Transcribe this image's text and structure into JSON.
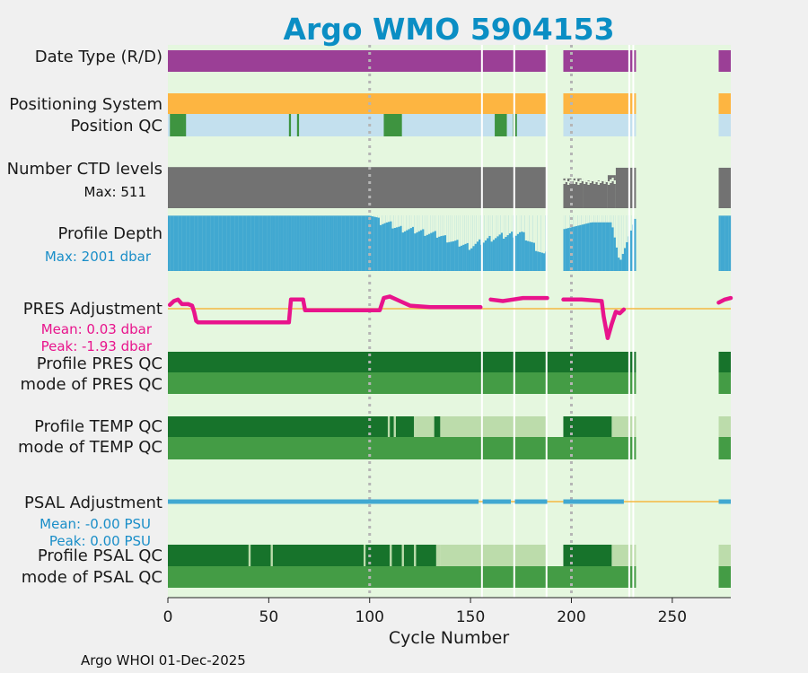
{
  "chart_data": {
    "type": "bar",
    "title": "Argo WMO 5904153",
    "xlabel": "Cycle Number",
    "xlim": [
      0,
      279
    ],
    "xticks": [
      0,
      50,
      100,
      150,
      200,
      250
    ],
    "footer": "Argo WHOI 01-Dec-2025",
    "gaps": [
      [
        188,
        196
      ],
      [
        232,
        273
      ]
    ],
    "missing_cycles": [
      155,
      171,
      187,
      228,
      230
    ],
    "dotted_lines_at": [
      100,
      200
    ],
    "row_labels": {
      "date_type": "Date Type (R/D)",
      "positioning": "Positioning System",
      "position_qc": "Position QC",
      "ctd_levels": "Number CTD levels",
      "profile_depth": "Profile Depth",
      "pres_adj": "PRES Adjustment",
      "profile_pres_qc": "Profile PRES QC",
      "mode_pres_qc": "mode of PRES QC",
      "profile_temp_qc": "Profile TEMP QC",
      "mode_temp_qc": "mode of TEMP QC",
      "psal_adj": "PSAL Adjustment",
      "profile_psal_qc": "Profile PSAL QC",
      "mode_psal_qc": "mode of PSAL QC"
    },
    "annotations": {
      "ctd_max": "Max: 511",
      "depth_max": "Max: 2001 dbar",
      "pres_mean": "Mean: 0.03 dbar",
      "pres_peak": "Peak: -1.93 dbar",
      "psal_mean": "Mean: -0.00 PSU",
      "psal_peak": "Peak: 0.00 PSU"
    },
    "colors": {
      "background": "#e5f7df",
      "date_type": "#9b3f96",
      "positioning": "#fdb541",
      "position_qc_good": "#c3e0ee",
      "position_qc_flag": "#3e9440",
      "ctd": "#727272",
      "depth": "#41a8d1",
      "pres_adj": "#e8148c",
      "zero_line": "#f5b942",
      "qc_dark": "#17732b",
      "qc_mid": "#449c45",
      "qc_light": "#bcdcab",
      "psal_adj": "#41a8d1",
      "title": "#0b8ec4",
      "annot_pink": "#e8148c",
      "annot_blue": "#1a8ec8"
    },
    "position_qc_flag_cycles": [
      [
        1,
        7
      ],
      [
        8,
        8
      ],
      [
        60,
        60
      ],
      [
        64,
        64
      ],
      [
        107,
        115
      ],
      [
        162,
        167
      ],
      [
        171,
        172
      ]
    ],
    "ctd_levels": [
      {
        "x0": 0,
        "x1": 188,
        "top": 498,
        "bottom": 0,
        "mean": 490
      },
      {
        "x0": 196,
        "x1": 206,
        "top": 360,
        "bottom": 0,
        "mean": 350
      },
      {
        "x0": 206,
        "x1": 218,
        "top": 335,
        "bottom": 0,
        "mean": 335
      },
      {
        "x0": 218,
        "x1": 222,
        "top": 400,
        "bottom": 0,
        "mean": 400
      },
      {
        "x0": 222,
        "x1": 232,
        "top": 490,
        "bottom": 0,
        "mean": 490
      },
      {
        "x0": 273,
        "x1": 279,
        "top": 490,
        "bottom": 0,
        "mean": 490
      }
    ],
    "profile_depth_points": [
      [
        0,
        1990
      ],
      [
        100,
        1990
      ],
      [
        108,
        1860
      ],
      [
        115,
        1650
      ],
      [
        125,
        1550
      ],
      [
        135,
        1400
      ],
      [
        142,
        1150
      ],
      [
        150,
        1000
      ],
      [
        160,
        1300
      ],
      [
        175,
        1500
      ],
      [
        187,
        650
      ],
      [
        196,
        1500
      ],
      [
        210,
        1750
      ],
      [
        220,
        1750
      ],
      [
        224,
        300
      ],
      [
        232,
        1980
      ],
      [
        273,
        1990
      ],
      [
        279,
        1990
      ]
    ],
    "profile_depth_max": 2001,
    "pres_adjustment": [
      [
        1,
        0.25
      ],
      [
        3,
        0.5
      ],
      [
        5,
        0.6
      ],
      [
        7,
        0.3
      ],
      [
        10,
        0.3
      ],
      [
        12,
        0.2
      ],
      [
        13,
        -0.2
      ],
      [
        14,
        -0.8
      ],
      [
        15,
        -0.9
      ],
      [
        20,
        -0.9
      ],
      [
        40,
        -0.9
      ],
      [
        60,
        -0.9
      ],
      [
        61,
        0.6
      ],
      [
        67,
        0.6
      ],
      [
        68,
        -0.1
      ],
      [
        80,
        -0.1
      ],
      [
        105,
        -0.1
      ],
      [
        107,
        0.7
      ],
      [
        110,
        0.8
      ],
      [
        115,
        0.5
      ],
      [
        120,
        0.2
      ],
      [
        130,
        0.1
      ],
      [
        155,
        0.1
      ],
      [
        160,
        0.6
      ],
      [
        166,
        0.5
      ],
      [
        171,
        0.6
      ],
      [
        176,
        0.7
      ],
      [
        188,
        0.7
      ],
      [
        196,
        0.6
      ],
      [
        205,
        0.6
      ],
      [
        215,
        0.5
      ],
      [
        216,
        -0.5
      ],
      [
        218,
        -1.93
      ],
      [
        220,
        -1.0
      ],
      [
        222,
        -0.2
      ],
      [
        224,
        -0.3
      ],
      [
        226,
        -0.05
      ],
      [
        273,
        0.4
      ],
      [
        276,
        0.6
      ],
      [
        279,
        0.7
      ]
    ],
    "pres_ylim": [
      -2.0,
      1.0
    ],
    "psal_adjustment": [
      [
        0,
        0.0
      ],
      [
        279,
        0.0
      ]
    ],
    "qc_rows": {
      "profile_pres_qc": [
        [
          0,
          232,
          "dark"
        ],
        [
          273,
          279,
          "dark"
        ]
      ],
      "mode_pres_qc": [
        [
          0,
          232,
          "mid"
        ],
        [
          273,
          279,
          "mid"
        ]
      ],
      "profile_temp_qc": [
        [
          0,
          109,
          "dark"
        ],
        [
          109,
          110,
          "light"
        ],
        [
          110,
          112,
          "dark"
        ],
        [
          112,
          113,
          "light"
        ],
        [
          113,
          122,
          "dark"
        ],
        [
          122,
          123,
          "light"
        ],
        [
          123,
          132,
          "light"
        ],
        [
          132,
          135,
          "dark"
        ],
        [
          135,
          188,
          "light"
        ],
        [
          196,
          220,
          "dark"
        ],
        [
          220,
          232,
          "light"
        ],
        [
          273,
          279,
          "light"
        ]
      ],
      "mode_temp_qc": [
        [
          0,
          232,
          "mid"
        ],
        [
          273,
          279,
          "mid"
        ]
      ],
      "profile_psal_qc": [
        [
          0,
          40,
          "dark"
        ],
        [
          40,
          41,
          "light"
        ],
        [
          41,
          51,
          "dark"
        ],
        [
          51,
          52,
          "light"
        ],
        [
          52,
          97,
          "dark"
        ],
        [
          97,
          98,
          "light"
        ],
        [
          98,
          110,
          "dark"
        ],
        [
          110,
          111,
          "light"
        ],
        [
          111,
          116,
          "dark"
        ],
        [
          116,
          117,
          "light"
        ],
        [
          117,
          122,
          "dark"
        ],
        [
          122,
          123,
          "light"
        ],
        [
          123,
          133,
          "dark"
        ],
        [
          133,
          135,
          "light"
        ],
        [
          135,
          188,
          "light"
        ],
        [
          196,
          220,
          "dark"
        ],
        [
          220,
          232,
          "light"
        ],
        [
          273,
          279,
          "light"
        ]
      ],
      "mode_psal_qc": [
        [
          0,
          232,
          "mid"
        ],
        [
          273,
          279,
          "mid"
        ]
      ]
    }
  }
}
